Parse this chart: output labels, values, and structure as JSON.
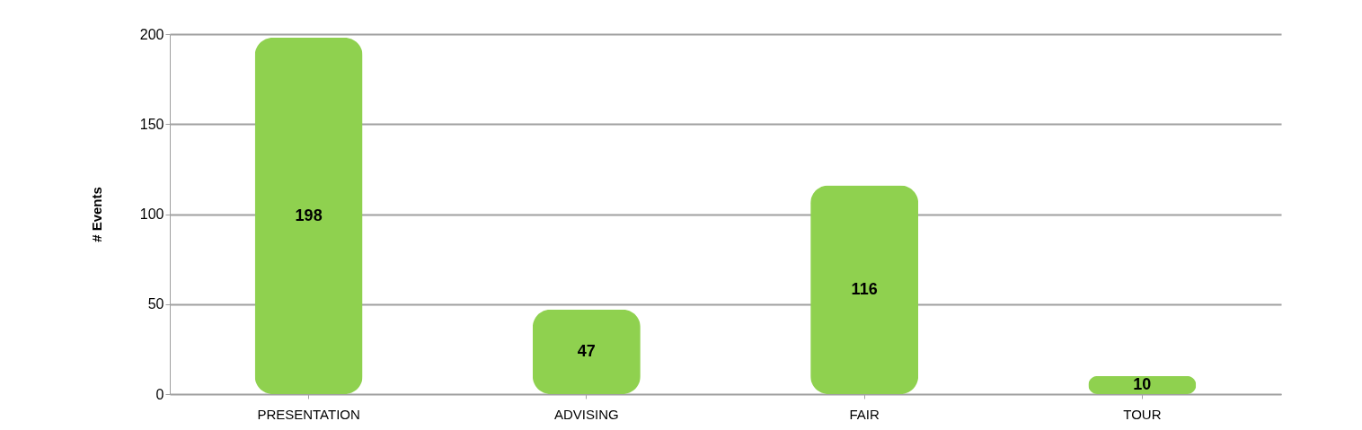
{
  "chart_data": {
    "type": "bar",
    "ylabel": "# Events",
    "categories": [
      "PRESENTATION",
      "ADVISING",
      "FAIR",
      "TOUR"
    ],
    "values": [
      198,
      47,
      116,
      10
    ],
    "color": "#8fd14f",
    "ylim": [
      0,
      200
    ],
    "yticks": [
      0,
      50,
      100,
      150,
      200
    ],
    "grid": "y",
    "data_labels": true
  }
}
